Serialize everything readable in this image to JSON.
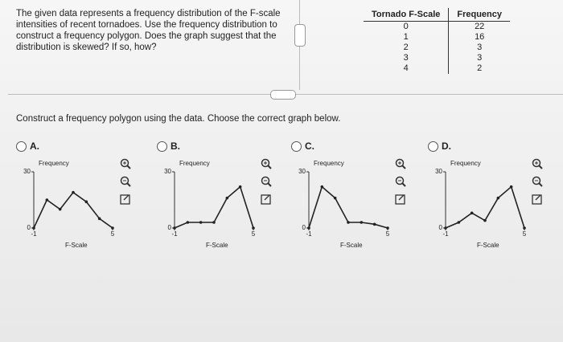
{
  "question": "The given data represents a frequency distribution of the F-scale intensities of recent tornadoes. Use the frequency distribution to construct a frequency polygon. Does the graph suggest that the distribution is skewed? If so, how?",
  "table": {
    "headers": [
      "Tornado F-Scale",
      "Frequency"
    ],
    "rows": [
      [
        0,
        22
      ],
      [
        1,
        16
      ],
      [
        2,
        3
      ],
      [
        3,
        3
      ],
      [
        4,
        2
      ]
    ]
  },
  "instruction": "Construct a frequency polygon using the data. Choose the correct graph below.",
  "options": [
    {
      "label": "A.",
      "chart": {
        "type": "line",
        "ylabel": "Frequency",
        "xlabel": "F-Scale",
        "x": [
          -1,
          0,
          1,
          2,
          3,
          4,
          5
        ],
        "values": [
          0,
          15,
          10,
          19,
          14,
          5,
          0
        ],
        "xlim": [
          -1,
          5
        ],
        "ylim": [
          0,
          30
        ],
        "xticks": [
          -1,
          5
        ],
        "yticks": [
          0,
          30
        ],
        "color": "#222222"
      }
    },
    {
      "label": "B.",
      "chart": {
        "type": "line",
        "ylabel": "Frequency",
        "xlabel": "F-Scale",
        "x": [
          -1,
          0,
          1,
          2,
          3,
          4,
          5
        ],
        "values": [
          0,
          3,
          3,
          3,
          16,
          22,
          0
        ],
        "xlim": [
          -1,
          5
        ],
        "ylim": [
          0,
          30
        ],
        "xticks": [
          -1,
          5
        ],
        "yticks": [
          0,
          30
        ],
        "color": "#222222"
      }
    },
    {
      "label": "C.",
      "chart": {
        "type": "line",
        "ylabel": "Frequency",
        "xlabel": "F-Scale",
        "x": [
          -1,
          0,
          1,
          2,
          3,
          4,
          5
        ],
        "values": [
          0,
          22,
          16,
          3,
          3,
          2,
          0
        ],
        "xlim": [
          -1,
          5
        ],
        "ylim": [
          0,
          30
        ],
        "xticks": [
          -1,
          5
        ],
        "yticks": [
          0,
          30
        ],
        "color": "#222222"
      }
    },
    {
      "label": "D.",
      "chart": {
        "type": "line",
        "ylabel": "Frequency",
        "xlabel": "F-Scale",
        "x": [
          -1,
          0,
          1,
          2,
          3,
          4,
          5
        ],
        "values": [
          0,
          3,
          8,
          4,
          16,
          22,
          0
        ],
        "xlim": [
          -1,
          5
        ],
        "ylim": [
          0,
          30
        ],
        "xticks": [
          -1,
          5
        ],
        "yticks": [
          0,
          30
        ],
        "color": "#222222"
      }
    }
  ]
}
